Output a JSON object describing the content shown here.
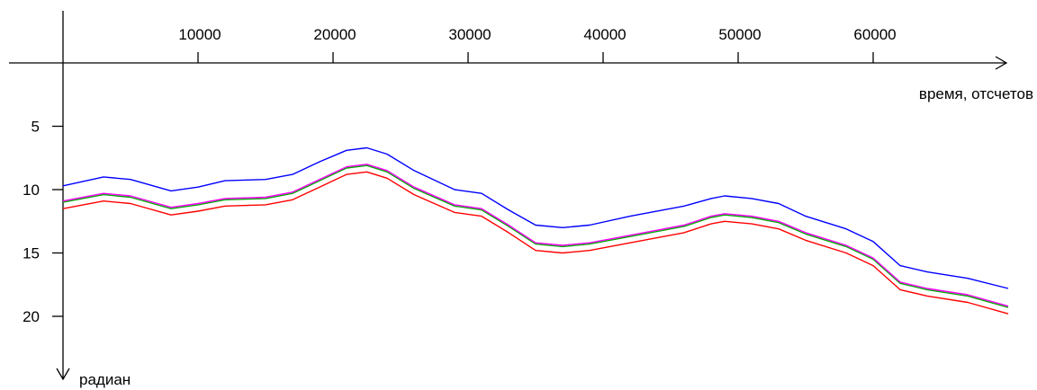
{
  "chart_data": {
    "type": "line",
    "xlabel": "время, отсчетов",
    "ylabel": "радиан",
    "xlim": [
      0,
      70000
    ],
    "ylim": [
      0,
      24
    ],
    "y_inverted": true,
    "x_ticks": [
      "10000",
      "20000",
      "30000",
      "40000",
      "50000",
      "60000"
    ],
    "y_ticks": [
      "5",
      "10",
      "15",
      "20"
    ],
    "grid": false,
    "legend": "none",
    "series": [
      {
        "color": "#0000ff",
        "x": [
          0,
          3000,
          5000,
          8000,
          10000,
          12000,
          15000,
          17000,
          19000,
          21000,
          22500,
          24000,
          26000,
          29000,
          31000,
          33000,
          35000,
          37000,
          39000,
          42000,
          46000,
          48000,
          49000,
          51000,
          53000,
          55000,
          58000,
          60000,
          62000,
          64000,
          67000,
          70000
        ],
        "y": [
          9.7,
          9.0,
          9.2,
          10.1,
          9.8,
          9.3,
          9.2,
          8.8,
          7.8,
          6.9,
          6.7,
          7.2,
          8.5,
          10.0,
          10.3,
          11.6,
          12.8,
          13.0,
          12.8,
          12.1,
          11.3,
          10.7,
          10.5,
          10.7,
          11.1,
          12.1,
          13.1,
          14.1,
          16.0,
          16.5,
          17.0,
          17.8
        ]
      },
      {
        "color": "#00aa00",
        "x": [
          0,
          3000,
          5000,
          8000,
          10000,
          12000,
          15000,
          17000,
          19000,
          21000,
          22500,
          24000,
          26000,
          29000,
          31000,
          33000,
          35000,
          37000,
          39000,
          42000,
          46000,
          48000,
          49000,
          51000,
          53000,
          55000,
          58000,
          60000,
          62000,
          64000,
          67000,
          70000
        ],
        "y": [
          11.0,
          10.4,
          10.6,
          11.5,
          11.2,
          10.8,
          10.7,
          10.3,
          9.3,
          8.3,
          8.1,
          8.6,
          9.9,
          11.3,
          11.6,
          12.9,
          14.3,
          14.5,
          14.3,
          13.7,
          12.9,
          12.2,
          12.0,
          12.2,
          12.6,
          13.5,
          14.5,
          15.5,
          17.4,
          17.9,
          18.4,
          19.3
        ]
      },
      {
        "color": "#ff00ff",
        "x": [
          0,
          3000,
          5000,
          8000,
          10000,
          12000,
          15000,
          17000,
          19000,
          21000,
          22500,
          24000,
          26000,
          29000,
          31000,
          33000,
          35000,
          37000,
          39000,
          42000,
          46000,
          48000,
          49000,
          51000,
          53000,
          55000,
          58000,
          60000,
          62000,
          64000,
          67000,
          70000
        ],
        "y": [
          10.9,
          10.3,
          10.5,
          11.4,
          11.1,
          10.7,
          10.6,
          10.2,
          9.2,
          8.2,
          8.0,
          8.5,
          9.8,
          11.2,
          11.5,
          12.8,
          14.2,
          14.4,
          14.2,
          13.6,
          12.8,
          12.1,
          11.9,
          12.1,
          12.5,
          13.4,
          14.4,
          15.4,
          17.3,
          17.8,
          18.3,
          19.2
        ]
      },
      {
        "color": "#ff0000",
        "x": [
          0,
          3000,
          5000,
          8000,
          10000,
          12000,
          15000,
          17000,
          19000,
          21000,
          22500,
          24000,
          26000,
          29000,
          31000,
          33000,
          35000,
          37000,
          39000,
          42000,
          46000,
          48000,
          49000,
          51000,
          53000,
          55000,
          58000,
          60000,
          62000,
          64000,
          67000,
          70000
        ],
        "y": [
          11.5,
          10.9,
          11.1,
          12.0,
          11.7,
          11.3,
          11.2,
          10.8,
          9.8,
          8.8,
          8.6,
          9.1,
          10.4,
          11.8,
          12.1,
          13.4,
          14.8,
          15.0,
          14.8,
          14.2,
          13.4,
          12.7,
          12.5,
          12.7,
          13.1,
          14.0,
          15.0,
          16.0,
          17.9,
          18.4,
          18.9,
          19.8
        ]
      }
    ]
  }
}
